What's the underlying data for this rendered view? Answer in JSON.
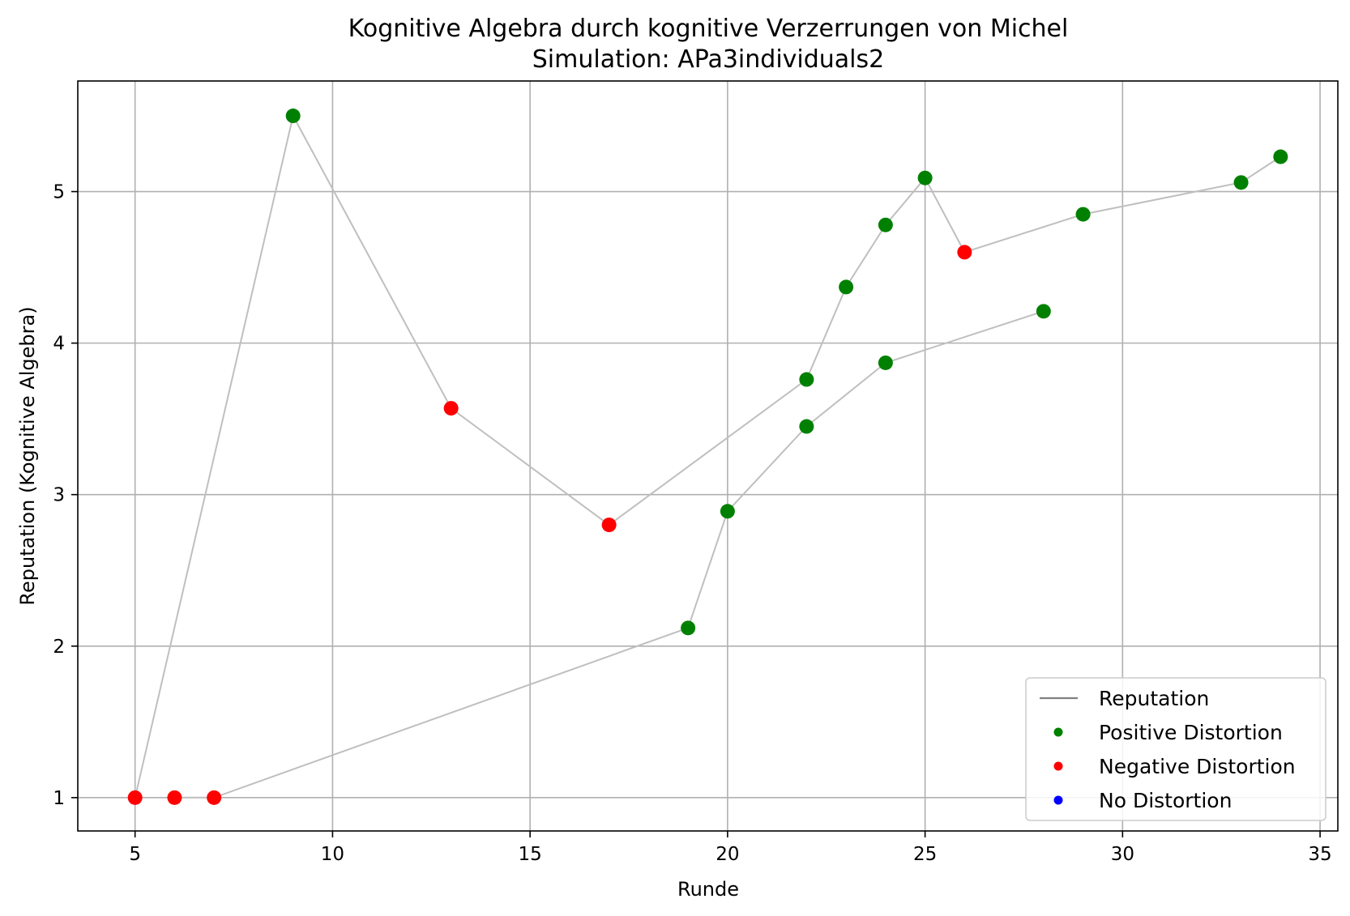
{
  "chart_data": {
    "type": "line",
    "title": "Kognitive Algebra durch kognitive Verzerrungen von Michel",
    "subtitle": "Simulation: APa3individuals2",
    "xlabel": "Runde",
    "ylabel": "Reputation (Kognitive Algebra)",
    "xlim": [
      3.55,
      35.45
    ],
    "ylim": [
      0.78,
      5.73
    ],
    "xticks": [
      5,
      10,
      15,
      20,
      25,
      30,
      35
    ],
    "yticks": [
      1,
      2,
      3,
      4,
      5
    ],
    "grid": true,
    "legend_position": "lower-right",
    "legend": [
      {
        "label": "Reputation",
        "kind": "line",
        "color": "#808080"
      },
      {
        "label": "Positive Distortion",
        "kind": "marker",
        "color": "#008000"
      },
      {
        "label": "Negative Distortion",
        "kind": "marker",
        "color": "#ff0000"
      },
      {
        "label": "No Distortion",
        "kind": "marker",
        "color": "#0000ff"
      }
    ],
    "line_color": "#bfbfbf",
    "colors": {
      "positive": "#008000",
      "negative": "#ff0000",
      "none": "#0000ff"
    },
    "series": [
      {
        "points": [
          {
            "x": 5,
            "y": 1.0,
            "distortion": "negative"
          },
          {
            "x": 9,
            "y": 5.5,
            "distortion": "positive"
          },
          {
            "x": 13,
            "y": 3.57,
            "distortion": "negative"
          },
          {
            "x": 17,
            "y": 2.8,
            "distortion": "negative"
          },
          {
            "x": 22,
            "y": 3.76,
            "distortion": "positive"
          },
          {
            "x": 23,
            "y": 4.37,
            "distortion": "positive"
          },
          {
            "x": 24,
            "y": 4.78,
            "distortion": "positive"
          },
          {
            "x": 25,
            "y": 5.09,
            "distortion": "positive"
          },
          {
            "x": 26,
            "y": 4.6,
            "distortion": "negative"
          },
          {
            "x": 29,
            "y": 4.85,
            "distortion": "positive"
          },
          {
            "x": 33,
            "y": 5.06,
            "distortion": "positive"
          },
          {
            "x": 34,
            "y": 5.23,
            "distortion": "positive"
          }
        ]
      },
      {
        "points": [
          {
            "x": 6,
            "y": 1.0,
            "distortion": "negative"
          },
          {
            "x": 7,
            "y": 1.0,
            "distortion": "negative"
          },
          {
            "x": 19,
            "y": 2.12,
            "distortion": "positive"
          },
          {
            "x": 20,
            "y": 2.89,
            "distortion": "positive"
          },
          {
            "x": 22,
            "y": 3.45,
            "distortion": "positive"
          },
          {
            "x": 24,
            "y": 3.87,
            "distortion": "positive"
          },
          {
            "x": 28,
            "y": 4.21,
            "distortion": "positive"
          }
        ]
      }
    ]
  }
}
